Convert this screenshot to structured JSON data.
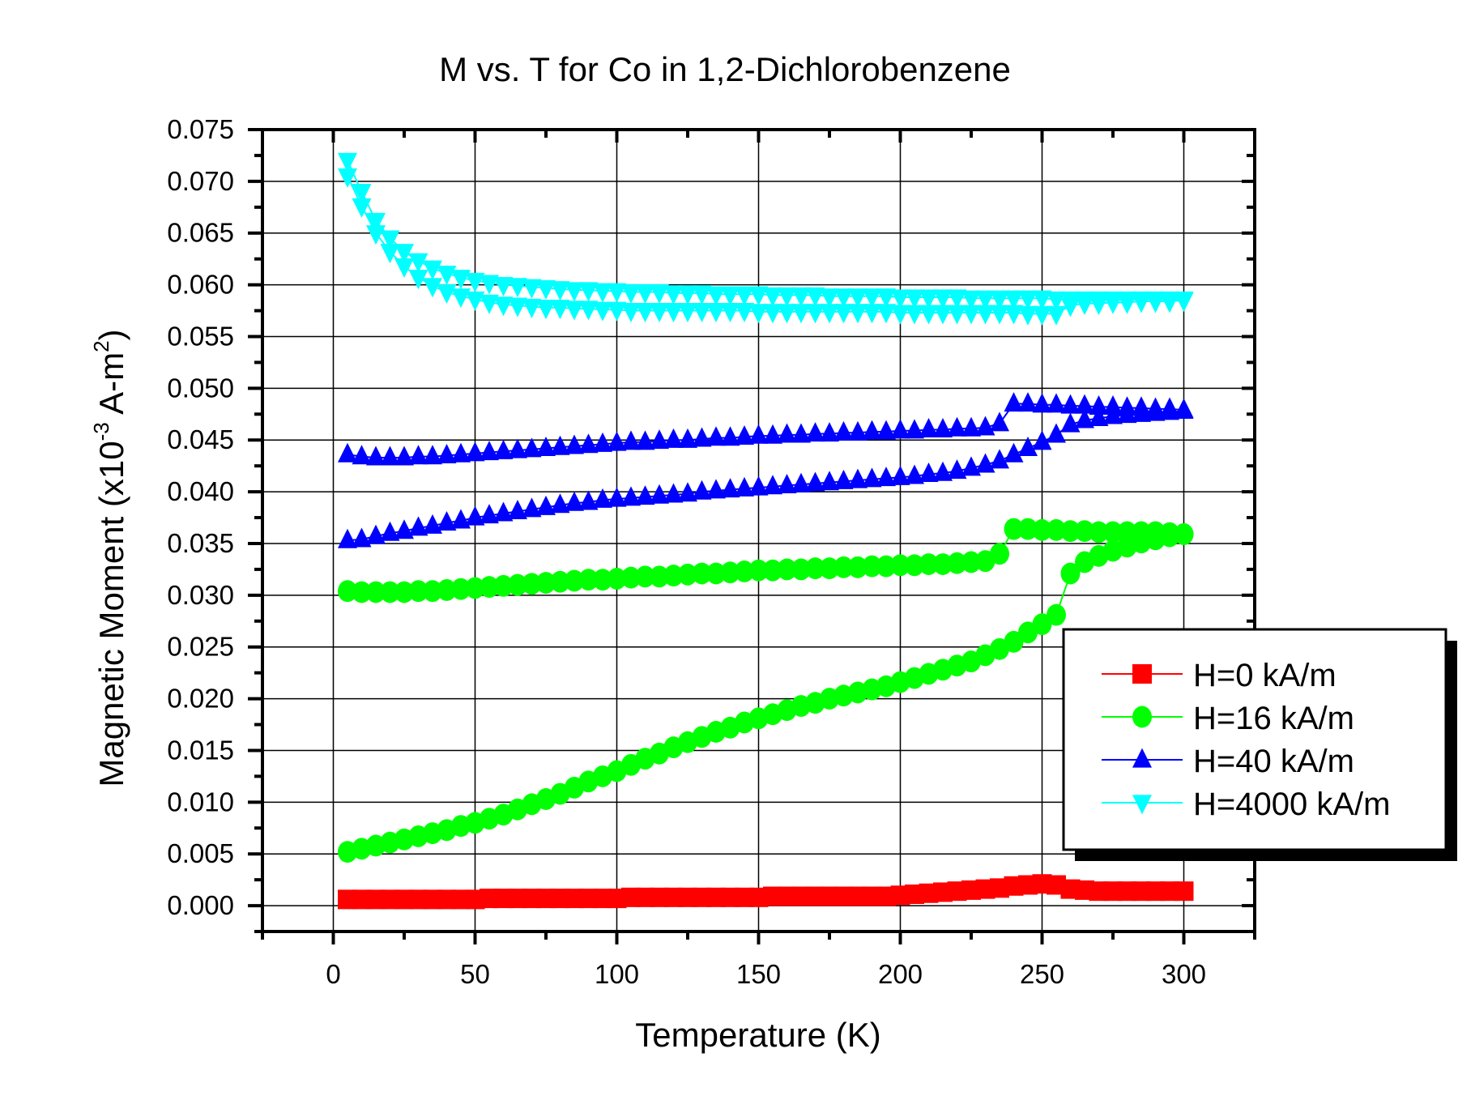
{
  "chart_data": {
    "type": "scatter",
    "title": "M vs. T for Co in 1,2-Dichlorobenzene",
    "xlabel": "Temperature (K)",
    "ylabel": {
      "main": "Magnetic Moment (x10",
      "exp1": "-3",
      "mid": " A-m",
      "exp2": "2",
      "end": ")"
    },
    "xlim": [
      -25,
      325
    ],
    "ylim": [
      -0.0025,
      0.075
    ],
    "xticks": [
      0,
      50,
      100,
      150,
      200,
      250,
      300
    ],
    "xtick_labels": [
      "0",
      "50",
      "100",
      "150",
      "200",
      "250",
      "300"
    ],
    "yticks": [
      0,
      0.005,
      0.01,
      0.015,
      0.02,
      0.025,
      0.03,
      0.035,
      0.04,
      0.045,
      0.05,
      0.055,
      0.06,
      0.065,
      0.07,
      0.075
    ],
    "ytick_labels": [
      "0.000",
      "0.005",
      "0.010",
      "0.015",
      "0.020",
      "0.025",
      "0.030",
      "0.035",
      "0.040",
      "0.045",
      "0.050",
      "0.055",
      "0.060",
      "0.065",
      "0.070",
      "0.075"
    ],
    "grid": true,
    "legend_position": "right",
    "x": [
      5,
      10,
      15,
      20,
      25,
      30,
      35,
      40,
      45,
      50,
      55,
      60,
      65,
      70,
      75,
      80,
      85,
      90,
      95,
      100,
      105,
      110,
      115,
      120,
      125,
      130,
      135,
      140,
      145,
      150,
      155,
      160,
      165,
      170,
      175,
      180,
      185,
      190,
      195,
      200,
      205,
      210,
      215,
      220,
      225,
      230,
      235,
      240,
      245,
      250,
      255,
      260,
      265,
      270,
      275,
      280,
      285,
      290,
      295,
      300
    ],
    "series": [
      {
        "name": "H=0 kA/m",
        "color": "#ff0000",
        "marker": "square",
        "branches": [
          [
            0.0006,
            0.0006,
            0.0006,
            0.0006,
            0.0006,
            0.0006,
            0.0006,
            0.0006,
            0.0006,
            0.0006,
            0.0007,
            0.0007,
            0.0007,
            0.0007,
            0.0007,
            0.0007,
            0.0007,
            0.0007,
            0.0007,
            0.0007,
            0.0008,
            0.0008,
            0.0008,
            0.0008,
            0.0008,
            0.0008,
            0.0008,
            0.0008,
            0.0008,
            0.0008,
            0.0009,
            0.0009,
            0.0009,
            0.0009,
            0.0009,
            0.0009,
            0.0009,
            0.0009,
            0.0009,
            0.001,
            0.0011,
            0.0012,
            0.0013,
            0.0014,
            0.0015,
            0.0016,
            0.0017,
            0.0019,
            0.002,
            0.0021,
            0.002,
            0.0016,
            0.0015,
            0.0014,
            0.0014,
            0.0014,
            0.0014,
            0.0014,
            0.0014,
            0.0014
          ]
        ]
      },
      {
        "name": "H=16 kA/m",
        "color": "#00ff00",
        "marker": "circle",
        "branches": [
          [
            0.0052,
            0.0055,
            0.0058,
            0.0061,
            0.0064,
            0.0067,
            0.007,
            0.0073,
            0.0077,
            0.008,
            0.0084,
            0.0088,
            0.0093,
            0.0098,
            0.0103,
            0.0108,
            0.0114,
            0.012,
            0.0125,
            0.013,
            0.0136,
            0.0142,
            0.0147,
            0.0153,
            0.0158,
            0.0163,
            0.0168,
            0.0172,
            0.0177,
            0.0181,
            0.0185,
            0.0189,
            0.0193,
            0.0196,
            0.02,
            0.0203,
            0.0206,
            0.0209,
            0.0212,
            0.0216,
            0.022,
            0.0224,
            0.0228,
            0.0232,
            0.0236,
            0.0242,
            0.0248,
            0.0255,
            0.0264,
            0.0272,
            0.0281,
            0.0321,
            0.0332,
            0.0338,
            0.0343,
            0.0347,
            0.0351,
            0.0354,
            0.0357,
            0.0359
          ],
          [
            0.0304,
            0.0303,
            0.0303,
            0.0303,
            0.0303,
            0.0304,
            0.0304,
            0.0305,
            0.0306,
            0.0307,
            0.0308,
            0.0309,
            0.031,
            0.0311,
            0.0312,
            0.0313,
            0.0314,
            0.0315,
            0.0315,
            0.0316,
            0.0317,
            0.0318,
            0.0318,
            0.0319,
            0.032,
            0.0321,
            0.0321,
            0.0322,
            0.0323,
            0.0324,
            0.0324,
            0.0325,
            0.0325,
            0.0326,
            0.0326,
            0.0327,
            0.0327,
            0.0328,
            0.0328,
            0.0329,
            0.0329,
            0.033,
            0.033,
            0.0331,
            0.0332,
            0.0333,
            0.034,
            0.0364,
            0.0364,
            0.0363,
            0.0363,
            0.0362,
            0.0362,
            0.0361,
            0.0361,
            0.0361,
            0.0361,
            0.0361,
            0.036,
            0.0359
          ]
        ]
      },
      {
        "name": "H=40 kA/m",
        "color": "#0000ff",
        "marker": "triangle-up",
        "branches": [
          [
            0.0353,
            0.0354,
            0.0357,
            0.036,
            0.0362,
            0.0365,
            0.0367,
            0.037,
            0.0372,
            0.0375,
            0.0377,
            0.0379,
            0.0381,
            0.0383,
            0.0385,
            0.0387,
            0.0389,
            0.039,
            0.0392,
            0.0393,
            0.0394,
            0.0395,
            0.0396,
            0.0397,
            0.0398,
            0.04,
            0.0401,
            0.0402,
            0.0403,
            0.0404,
            0.0405,
            0.0406,
            0.0407,
            0.0408,
            0.0409,
            0.041,
            0.0411,
            0.0412,
            0.0413,
            0.0414,
            0.0415,
            0.0417,
            0.0418,
            0.042,
            0.0423,
            0.0426,
            0.043,
            0.0436,
            0.0442,
            0.0448,
            0.0455,
            0.0465,
            0.0469,
            0.0471,
            0.0473,
            0.0474,
            0.0475,
            0.0476,
            0.0477,
            0.0478
          ],
          [
            0.0436,
            0.0434,
            0.0433,
            0.0433,
            0.0433,
            0.0434,
            0.0434,
            0.0435,
            0.0436,
            0.0437,
            0.0438,
            0.0439,
            0.044,
            0.0441,
            0.0442,
            0.0443,
            0.0444,
            0.0445,
            0.0446,
            0.0447,
            0.0448,
            0.0448,
            0.0449,
            0.045,
            0.045,
            0.0451,
            0.0452,
            0.0452,
            0.0453,
            0.0454,
            0.0454,
            0.0455,
            0.0455,
            0.0456,
            0.0456,
            0.0457,
            0.0457,
            0.0458,
            0.0458,
            0.0459,
            0.0459,
            0.046,
            0.046,
            0.0461,
            0.0461,
            0.0462,
            0.0466,
            0.0485,
            0.0485,
            0.0484,
            0.0484,
            0.0483,
            0.0483,
            0.0482,
            0.0482,
            0.0481,
            0.0481,
            0.048,
            0.048,
            0.0479
          ]
        ]
      },
      {
        "name": "H=4000 kA/m",
        "color": "#00ffff",
        "marker": "triangle-down",
        "branches": [
          [
            0.072,
            0.069,
            0.0662,
            0.0645,
            0.0632,
            0.0623,
            0.0616,
            0.0611,
            0.0607,
            0.0604,
            0.0602,
            0.06,
            0.0599,
            0.0598,
            0.0597,
            0.0596,
            0.0595,
            0.0595,
            0.0594,
            0.0594,
            0.0593,
            0.0593,
            0.0593,
            0.0592,
            0.0592,
            0.0592,
            0.0591,
            0.0591,
            0.0591,
            0.0591,
            0.059,
            0.059,
            0.059,
            0.059,
            0.0589,
            0.0589,
            0.0589,
            0.0589,
            0.0589,
            0.0588,
            0.0588,
            0.0588,
            0.0588,
            0.0588,
            0.0587,
            0.0587,
            0.0587,
            0.0587,
            0.0587,
            0.0587,
            0.0586,
            0.0586,
            0.0586,
            0.0586,
            0.0586,
            0.0586,
            0.0586,
            0.0586,
            0.0586,
            0.0586
          ],
          [
            0.0705,
            0.0676,
            0.065,
            0.0632,
            0.0618,
            0.0607,
            0.0599,
            0.0593,
            0.0589,
            0.0586,
            0.0583,
            0.0581,
            0.058,
            0.0579,
            0.0578,
            0.0578,
            0.0577,
            0.0577,
            0.0576,
            0.0576,
            0.0575,
            0.0575,
            0.0575,
            0.0575,
            0.0575,
            0.0575,
            0.0575,
            0.0575,
            0.0575,
            0.0574,
            0.0574,
            0.0574,
            0.0574,
            0.0574,
            0.0574,
            0.0574,
            0.0574,
            0.0574,
            0.0574,
            0.0573,
            0.0573,
            0.0573,
            0.0573,
            0.0573,
            0.0573,
            0.0573,
            0.0573,
            0.0573,
            0.0572,
            0.0572,
            0.0572,
            0.058,
            0.0582,
            0.0582,
            0.0583,
            0.0583,
            0.0584,
            0.0584,
            0.0584,
            0.0585
          ]
        ]
      }
    ]
  }
}
